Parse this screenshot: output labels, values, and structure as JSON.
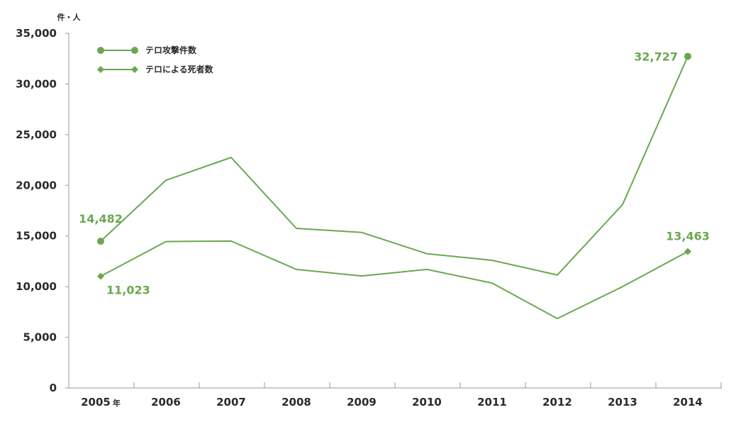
{
  "chart_data": {
    "type": "line",
    "categories": [
      "2005",
      "2006",
      "2007",
      "2008",
      "2009",
      "2010",
      "2011",
      "2012",
      "2013",
      "2014"
    ],
    "year_suffix": "年",
    "ylabel": "件・人",
    "ylim": [
      0,
      35000
    ],
    "yticks": [
      0,
      5000,
      10000,
      15000,
      20000,
      25000,
      30000,
      35000
    ],
    "ytick_labels": [
      "0",
      "5,000",
      "10,000",
      "15,000",
      "20,000",
      "25,000",
      "30,000",
      "35,000"
    ],
    "grid": false,
    "legend_position": "top-left",
    "series": [
      {
        "name": "テロ攻撃件数",
        "marker": "circle",
        "values": [
          14482,
          20500,
          22750,
          15750,
          15350,
          13250,
          12600,
          11150,
          18100,
          32727
        ],
        "point_labels": [
          {
            "index": 0,
            "text": "14,482"
          },
          {
            "index": 9,
            "text": "32,727"
          }
        ]
      },
      {
        "name": "テロによる死者数",
        "marker": "diamond",
        "values": [
          11023,
          14450,
          14500,
          11700,
          11050,
          11700,
          10350,
          6850,
          10000,
          13463
        ],
        "point_labels": [
          {
            "index": 0,
            "text": "11,023"
          },
          {
            "index": 9,
            "text": "13,463"
          }
        ]
      }
    ],
    "colors": {
      "line": "#6aa84f",
      "label": "#6aa84f",
      "axis": "#999999",
      "text": "#2b2b2b"
    }
  }
}
